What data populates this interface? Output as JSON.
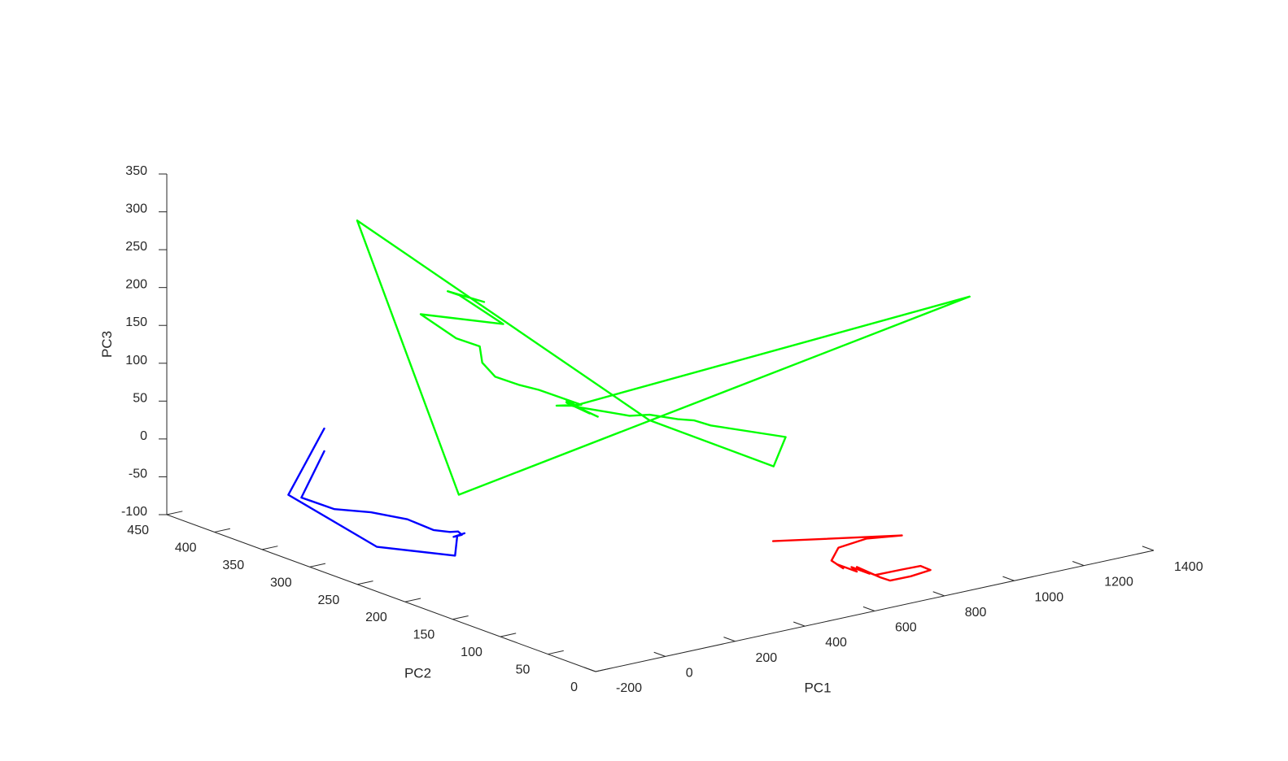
{
  "chart_data": {
    "type": "line3d",
    "title": "",
    "xlabel": "PC1",
    "ylabel": "PC2",
    "zlabel": "PC3",
    "xlim": [
      -200,
      1400
    ],
    "ylim": [
      0,
      450
    ],
    "zlim": [
      -100,
      350
    ],
    "xticks": [
      "-200",
      "0",
      "200",
      "400",
      "600",
      "800",
      "1000",
      "1200",
      "1400"
    ],
    "yticks": [
      "0",
      "50",
      "100",
      "150",
      "200",
      "250",
      "300",
      "350",
      "400",
      "450"
    ],
    "zticks": [
      "-100",
      "-50",
      "0",
      "50",
      "100",
      "150",
      "200",
      "250",
      "300",
      "350"
    ],
    "grid": false,
    "legend": "none",
    "series": [
      {
        "color": "#00ff00",
        "points": [
          [
            300,
            300,
            200
          ],
          [
            250,
            320,
            210
          ],
          [
            270,
            315,
            205
          ],
          [
            300,
            280,
            180
          ],
          [
            200,
            330,
            180
          ],
          [
            220,
            300,
            160
          ],
          [
            260,
            290,
            150
          ],
          [
            240,
            280,
            135
          ],
          [
            250,
            270,
            120
          ],
          [
            290,
            260,
            110
          ],
          [
            320,
            250,
            105
          ],
          [
            340,
            230,
            100
          ],
          [
            360,
            220,
            95
          ],
          [
            330,
            235,
            90
          ],
          [
            355,
            225,
            92
          ],
          [
            345,
            230,
            98
          ],
          [
            370,
            215,
            85
          ],
          [
            340,
            228,
            96
          ],
          [
            365,
            220,
            88
          ],
          [
            380,
            210,
            82
          ],
          [
            350,
            232,
            94
          ],
          [
            360,
            225,
            90
          ],
          [
            400,
            205,
            88
          ],
          [
            430,
            195,
            85
          ],
          [
            460,
            185,
            88
          ],
          [
            500,
            170,
            85
          ],
          [
            520,
            160,
            86
          ],
          [
            540,
            150,
            82
          ],
          [
            700,
            130,
            60
          ],
          [
            720,
            150,
            10
          ],
          [
            500,
            200,
            70
          ],
          [
            100,
            360,
            300
          ],
          [
            200,
            290,
            -40
          ],
          [
            1200,
            120,
            200
          ],
          [
            350,
            225,
            92
          ]
        ]
      },
      {
        "color": "#0000ff",
        "points": [
          [
            60,
            380,
            -10
          ],
          [
            -60,
            360,
            -50
          ],
          [
            -20,
            340,
            -60
          ],
          [
            30,
            320,
            -60
          ],
          [
            80,
            300,
            -65
          ],
          [
            100,
            280,
            -72
          ],
          [
            120,
            270,
            -72
          ],
          [
            130,
            265,
            -70
          ],
          [
            135,
            263,
            -74
          ],
          [
            125,
            268,
            -78
          ],
          [
            140,
            262,
            -72
          ],
          [
            130,
            266,
            -76
          ],
          [
            80,
            250,
            -90
          ],
          [
            20,
            310,
            -100
          ],
          [
            -70,
            370,
            -50
          ],
          [
            60,
            380,
            20
          ]
        ]
      },
      {
        "color": "#ff0000",
        "points": [
          [
            500,
            70,
            -30
          ],
          [
            760,
            30,
            -30
          ],
          [
            700,
            45,
            -35
          ],
          [
            660,
            60,
            -50
          ],
          [
            640,
            60,
            -65
          ],
          [
            660,
            55,
            -75
          ],
          [
            650,
            58,
            -70
          ],
          [
            680,
            48,
            -78
          ],
          [
            670,
            50,
            -72
          ],
          [
            700,
            42,
            -80
          ],
          [
            690,
            44,
            -76
          ],
          [
            710,
            40,
            -82
          ],
          [
            760,
            30,
            -75
          ],
          [
            800,
            25,
            -72
          ],
          [
            820,
            22,
            -78
          ],
          [
            780,
            28,
            -85
          ],
          [
            740,
            35,
            -90
          ],
          [
            720,
            38,
            -85
          ],
          [
            680,
            48,
            -72
          ]
        ]
      }
    ]
  }
}
